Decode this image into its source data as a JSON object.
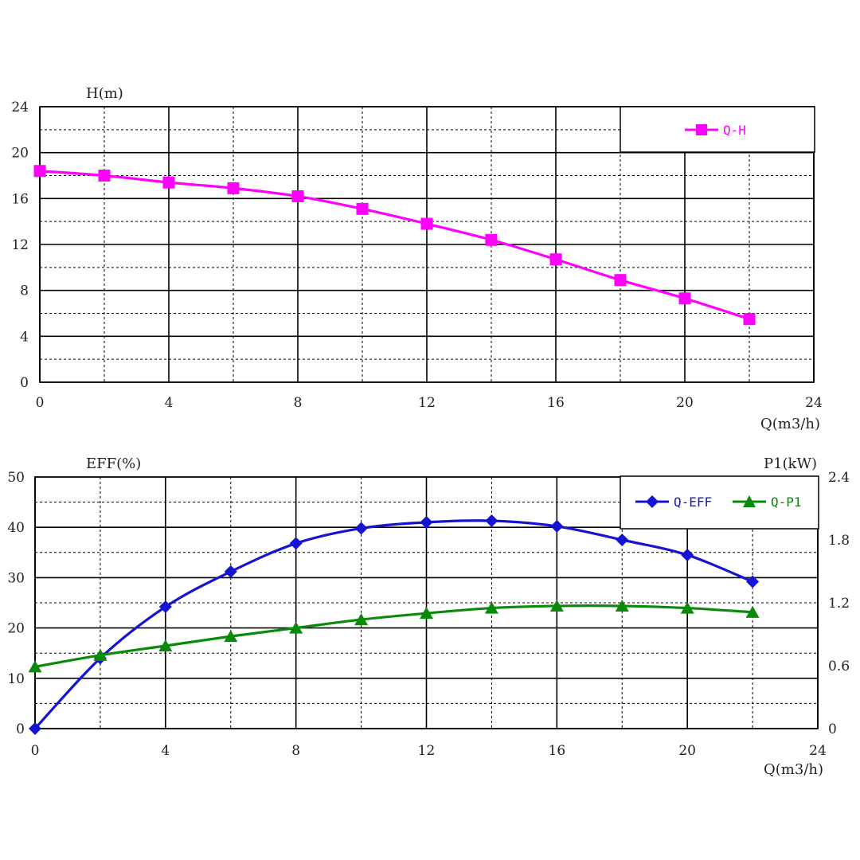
{
  "chart_data": [
    {
      "type": "line",
      "title": "",
      "xlabel": "Q(m3/h)",
      "ylabel": "H(m)",
      "xlim": [
        0,
        24
      ],
      "ylim": [
        0,
        24
      ],
      "xticks": [
        "0",
        "4",
        "8",
        "12",
        "16",
        "20",
        "24"
      ],
      "yticks": [
        "0",
        "4",
        "8",
        "12",
        "16",
        "20",
        "24"
      ],
      "grid": true,
      "legend": "top-right",
      "series": [
        {
          "name": "Q-H",
          "color": "#ff00ff",
          "marker": "square",
          "x": [
            0,
            2,
            4,
            6,
            8,
            10,
            12,
            14,
            16,
            18,
            20,
            22
          ],
          "y": [
            18.4,
            18.0,
            17.4,
            16.9,
            16.2,
            15.1,
            13.8,
            12.4,
            10.7,
            8.9,
            7.3,
            5.5
          ]
        }
      ]
    },
    {
      "type": "line",
      "title": "",
      "xlabel": "Q(m3/h)",
      "ylabel": "EFF(%)",
      "ylabel_right": "P1(kW)",
      "xlim": [
        0,
        24
      ],
      "ylim": [
        0,
        50
      ],
      "ylim_right": [
        0,
        2.4
      ],
      "xticks": [
        "0",
        "4",
        "8",
        "12",
        "16",
        "20",
        "24"
      ],
      "yticks": [
        "0",
        "10",
        "20",
        "30",
        "40",
        "50"
      ],
      "yticks_right": [
        "0",
        "0.6",
        "1.2",
        "1.8",
        "2.4"
      ],
      "grid": true,
      "legend": "top-right",
      "series": [
        {
          "name": "Q-EFF",
          "color": "#1414d2",
          "marker": "diamond",
          "axis": "left",
          "x": [
            0,
            2,
            4,
            6,
            8,
            10,
            12,
            14,
            16,
            18,
            20,
            22
          ],
          "y": [
            0,
            14,
            24.2,
            31.2,
            36.8,
            39.8,
            41.0,
            41.3,
            40.2,
            37.5,
            34.5,
            29.2
          ]
        },
        {
          "name": "Q-P1",
          "color": "#0a8a0a",
          "marker": "triangle",
          "axis": "right",
          "x": [
            0,
            2,
            4,
            6,
            8,
            10,
            12,
            14,
            16,
            18,
            20,
            22
          ],
          "y": [
            0.59,
            0.7,
            0.79,
            0.88,
            0.96,
            1.04,
            1.1,
            1.15,
            1.17,
            1.17,
            1.15,
            1.11
          ]
        }
      ]
    }
  ]
}
